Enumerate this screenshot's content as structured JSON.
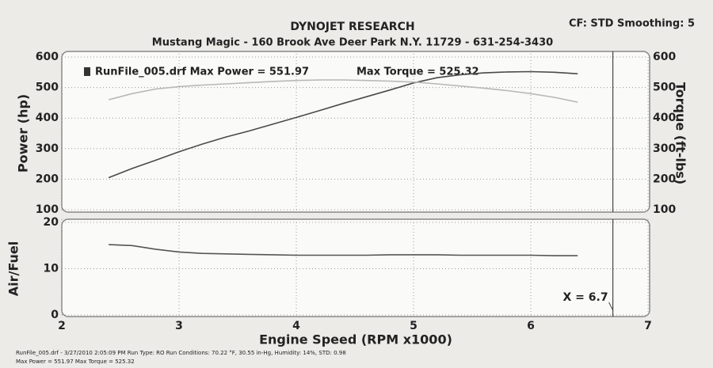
{
  "chart_data": [
    {
      "type": "line",
      "title": "DYNOJET RESEARCH",
      "subtitle": "Mustang Magic - 160 Brook Ave Deer Park N.Y. 11729 - 631-254-3430",
      "annotations": [
        "CF: STD  Smoothing: 5"
      ],
      "legend": {
        "text": "RunFile_005.drf Max Power = 551.97",
        "text2": "Max Torque = 525.32",
        "corner": "top-left"
      },
      "ylabel": "Power (hp)",
      "y2label": "Torque (ft-lbs)",
      "ylim": [
        100,
        600
      ],
      "yticks": [
        100,
        200,
        300,
        400,
        500,
        600
      ],
      "y2lim": [
        100,
        600
      ],
      "y2ticks": [
        100,
        200,
        300,
        400,
        500,
        600
      ],
      "grid": true,
      "x": [
        2.4,
        2.6,
        2.8,
        3.0,
        3.2,
        3.4,
        3.6,
        3.8,
        4.0,
        4.2,
        4.4,
        4.6,
        4.8,
        5.0,
        5.2,
        5.4,
        5.6,
        5.8,
        6.0,
        6.2,
        6.4
      ],
      "series": [
        {
          "color": "#4a4a4a",
          "values": [
            205,
            235,
            262,
            290,
            315,
            338,
            358,
            380,
            402,
            425,
            448,
            470,
            492,
            515,
            532,
            542,
            548,
            551,
            552,
            550,
            545
          ]
        },
        {
          "color": "#b8b8b8",
          "axis": "y2",
          "values": [
            460,
            480,
            495,
            503,
            508,
            512,
            516,
            520,
            523,
            525,
            525,
            523,
            521,
            518,
            512,
            505,
            498,
            490,
            480,
            468,
            452
          ]
        }
      ]
    },
    {
      "type": "line",
      "xlabel": "Engine Speed (RPM x1000)",
      "ylabel": "Air/Fuel",
      "xlim": [
        2,
        7
      ],
      "xticks": [
        2,
        3,
        4,
        5,
        6,
        7
      ],
      "ylim": [
        0,
        20
      ],
      "yticks": [
        0,
        10,
        20
      ],
      "grid": true,
      "cursor": {
        "label": "X = 6.7",
        "value": 6.7
      },
      "x": [
        2.4,
        2.6,
        2.8,
        3.0,
        3.2,
        3.4,
        3.6,
        3.8,
        4.0,
        4.2,
        4.4,
        4.6,
        4.8,
        5.0,
        5.2,
        5.4,
        5.6,
        5.8,
        6.0,
        6.2,
        6.4
      ],
      "series": [
        {
          "color": "#555555",
          "values": [
            15.2,
            15.0,
            14.2,
            13.6,
            13.3,
            13.2,
            13.1,
            13.0,
            12.9,
            12.9,
            12.9,
            12.9,
            13.0,
            13.0,
            13.0,
            12.9,
            12.9,
            12.9,
            12.9,
            12.8,
            12.8
          ]
        }
      ]
    }
  ],
  "footer": {
    "lines": [
      "RunFile_005.drf - 3/27/2010 2:05:09 PM  Run Type: RO  Run Conditions: 70.22 °F, 30.55 in-Hg, Humidity: 14%, STD: 0.98",
      "Max Power = 551.97  Max Torque = 525.32"
    ]
  }
}
